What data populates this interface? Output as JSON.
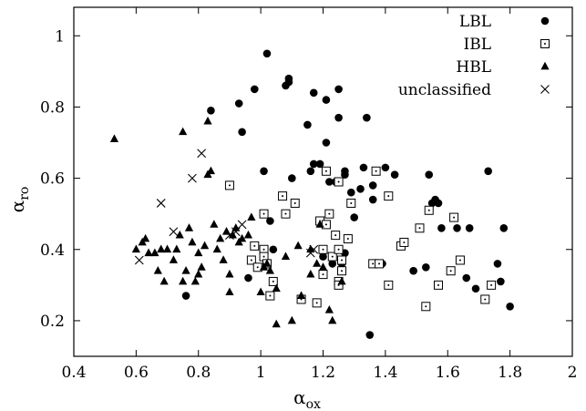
{
  "chart_data": {
    "type": "scatter",
    "title": "",
    "xlabel": {
      "base": "α",
      "sub": "ox"
    },
    "ylabel": {
      "base": "α",
      "sub": "ro"
    },
    "xlim": [
      0.4,
      2.0
    ],
    "ylim": [
      0.1,
      1.08
    ],
    "xticks": [
      0.4,
      0.6,
      0.8,
      1.0,
      1.2,
      1.4,
      1.6,
      1.8,
      2.0
    ],
    "xtick_labels": [
      "0.4",
      "0.6",
      "0.8",
      "1",
      "1.2",
      "1.4",
      "1.6",
      "1.8",
      "2"
    ],
    "yticks": [
      0.2,
      0.4,
      0.6,
      0.8,
      1.0
    ],
    "ytick_labels": [
      "0.2",
      "0.4",
      "0.6",
      "0.8",
      "1"
    ],
    "grid": false,
    "legend_position": "top-right",
    "series": [
      {
        "name": "LBL",
        "marker": "filled-circle",
        "points": [
          [
            0.76,
            0.27
          ],
          [
            0.84,
            0.79
          ],
          [
            0.93,
            0.81
          ],
          [
            0.94,
            0.73
          ],
          [
            0.96,
            0.32
          ],
          [
            0.98,
            0.85
          ],
          [
            1.01,
            0.62
          ],
          [
            1.02,
            0.95
          ],
          [
            1.03,
            0.48
          ],
          [
            1.04,
            0.4
          ],
          [
            1.08,
            0.86
          ],
          [
            1.09,
            0.88
          ],
          [
            1.09,
            0.87
          ],
          [
            1.1,
            0.6
          ],
          [
            1.15,
            0.75
          ],
          [
            1.16,
            0.62
          ],
          [
            1.17,
            0.84
          ],
          [
            1.17,
            0.64
          ],
          [
            1.19,
            0.64
          ],
          [
            1.19,
            0.48
          ],
          [
            1.2,
            0.38
          ],
          [
            1.21,
            0.7
          ],
          [
            1.21,
            0.82
          ],
          [
            1.22,
            0.59
          ],
          [
            1.23,
            0.36
          ],
          [
            1.24,
            0.59
          ],
          [
            1.25,
            0.85
          ],
          [
            1.25,
            0.77
          ],
          [
            1.26,
            0.36
          ],
          [
            1.27,
            0.62
          ],
          [
            1.27,
            0.61
          ],
          [
            1.27,
            0.39
          ],
          [
            1.29,
            0.56
          ],
          [
            1.3,
            0.49
          ],
          [
            1.32,
            0.57
          ],
          [
            1.33,
            0.63
          ],
          [
            1.34,
            0.77
          ],
          [
            1.35,
            0.16
          ],
          [
            1.36,
            0.58
          ],
          [
            1.36,
            0.54
          ],
          [
            1.39,
            0.36
          ],
          [
            1.4,
            0.63
          ],
          [
            1.43,
            0.61
          ],
          [
            1.49,
            0.34
          ],
          [
            1.53,
            0.35
          ],
          [
            1.54,
            0.61
          ],
          [
            1.55,
            0.53
          ],
          [
            1.56,
            0.54
          ],
          [
            1.57,
            0.53
          ],
          [
            1.58,
            0.46
          ],
          [
            1.63,
            0.46
          ],
          [
            1.66,
            0.32
          ],
          [
            1.67,
            0.46
          ],
          [
            1.69,
            0.29
          ],
          [
            1.73,
            0.62
          ],
          [
            1.76,
            0.36
          ],
          [
            1.77,
            0.31
          ],
          [
            1.78,
            0.46
          ],
          [
            1.8,
            0.24
          ]
        ]
      },
      {
        "name": "IBL",
        "marker": "open-square-dot",
        "points": [
          [
            0.9,
            0.58
          ],
          [
            0.97,
            0.37
          ],
          [
            0.98,
            0.41
          ],
          [
            0.99,
            0.35
          ],
          [
            1.01,
            0.4
          ],
          [
            1.01,
            0.38
          ],
          [
            1.01,
            0.5
          ],
          [
            1.02,
            0.36
          ],
          [
            1.03,
            0.27
          ],
          [
            1.04,
            0.31
          ],
          [
            1.07,
            0.55
          ],
          [
            1.08,
            0.5
          ],
          [
            1.11,
            0.53
          ],
          [
            1.13,
            0.26
          ],
          [
            1.18,
            0.25
          ],
          [
            1.19,
            0.48
          ],
          [
            1.2,
            0.4
          ],
          [
            1.2,
            0.33
          ],
          [
            1.21,
            0.47
          ],
          [
            1.21,
            0.62
          ],
          [
            1.22,
            0.5
          ],
          [
            1.23,
            0.38
          ],
          [
            1.24,
            0.44
          ],
          [
            1.25,
            0.31
          ],
          [
            1.25,
            0.3
          ],
          [
            1.25,
            0.59
          ],
          [
            1.25,
            0.4
          ],
          [
            1.26,
            0.34
          ],
          [
            1.26,
            0.37
          ],
          [
            1.28,
            0.43
          ],
          [
            1.29,
            0.53
          ],
          [
            1.36,
            0.36
          ],
          [
            1.37,
            0.62
          ],
          [
            1.38,
            0.36
          ],
          [
            1.41,
            0.3
          ],
          [
            1.41,
            0.55
          ],
          [
            1.45,
            0.41
          ],
          [
            1.46,
            0.42
          ],
          [
            1.51,
            0.46
          ],
          [
            1.53,
            0.24
          ],
          [
            1.54,
            0.51
          ],
          [
            1.57,
            0.3
          ],
          [
            1.61,
            0.34
          ],
          [
            1.62,
            0.49
          ],
          [
            1.64,
            0.37
          ],
          [
            1.72,
            0.26
          ],
          [
            1.74,
            0.3
          ]
        ]
      },
      {
        "name": "HBL",
        "marker": "filled-triangle",
        "points": [
          [
            0.53,
            0.71
          ],
          [
            0.6,
            0.4
          ],
          [
            0.62,
            0.42
          ],
          [
            0.63,
            0.43
          ],
          [
            0.64,
            0.39
          ],
          [
            0.66,
            0.39
          ],
          [
            0.67,
            0.34
          ],
          [
            0.68,
            0.4
          ],
          [
            0.69,
            0.31
          ],
          [
            0.7,
            0.4
          ],
          [
            0.72,
            0.37
          ],
          [
            0.73,
            0.4
          ],
          [
            0.74,
            0.44
          ],
          [
            0.75,
            0.31
          ],
          [
            0.75,
            0.73
          ],
          [
            0.76,
            0.34
          ],
          [
            0.77,
            0.46
          ],
          [
            0.78,
            0.42
          ],
          [
            0.79,
            0.31
          ],
          [
            0.8,
            0.33
          ],
          [
            0.8,
            0.39
          ],
          [
            0.81,
            0.35
          ],
          [
            0.82,
            0.41
          ],
          [
            0.83,
            0.76
          ],
          [
            0.83,
            0.61
          ],
          [
            0.84,
            0.62
          ],
          [
            0.85,
            0.47
          ],
          [
            0.86,
            0.4
          ],
          [
            0.87,
            0.43
          ],
          [
            0.88,
            0.37
          ],
          [
            0.89,
            0.45
          ],
          [
            0.9,
            0.33
          ],
          [
            0.9,
            0.28
          ],
          [
            0.91,
            0.44
          ],
          [
            0.92,
            0.46
          ],
          [
            0.93,
            0.42
          ],
          [
            0.94,
            0.43
          ],
          [
            0.96,
            0.44
          ],
          [
            0.97,
            0.49
          ],
          [
            1.0,
            0.28
          ],
          [
            1.01,
            0.35
          ],
          [
            1.02,
            0.36
          ],
          [
            1.03,
            0.34
          ],
          [
            1.05,
            0.19
          ],
          [
            1.05,
            0.29
          ],
          [
            1.08,
            0.38
          ],
          [
            1.1,
            0.2
          ],
          [
            1.12,
            0.41
          ],
          [
            1.13,
            0.27
          ],
          [
            1.16,
            0.33
          ],
          [
            1.16,
            0.4
          ],
          [
            1.18,
            0.36
          ],
          [
            1.19,
            0.47
          ],
          [
            1.2,
            0.35
          ],
          [
            1.22,
            0.23
          ],
          [
            1.23,
            0.2
          ],
          [
            1.26,
            0.31
          ]
        ]
      },
      {
        "name": "unclassified",
        "marker": "cross",
        "points": [
          [
            0.61,
            0.37
          ],
          [
            0.68,
            0.53
          ],
          [
            0.72,
            0.45
          ],
          [
            0.78,
            0.6
          ],
          [
            0.81,
            0.67
          ],
          [
            0.9,
            0.44
          ],
          [
            0.92,
            0.45
          ],
          [
            0.94,
            0.47
          ],
          [
            1.16,
            0.39
          ],
          [
            1.17,
            0.4
          ]
        ]
      }
    ]
  }
}
